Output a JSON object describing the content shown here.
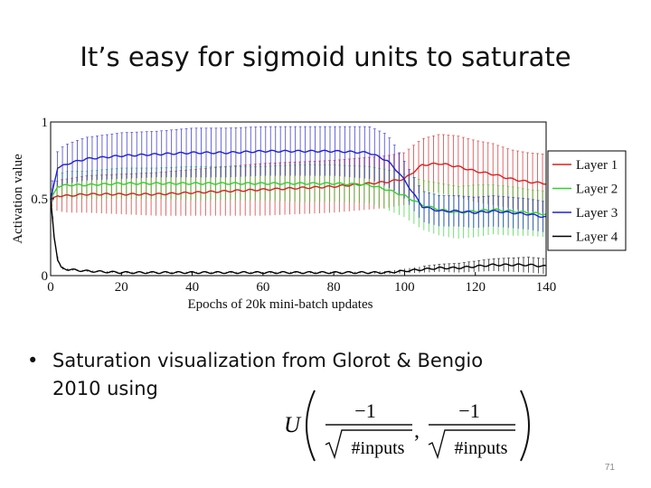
{
  "slide": {
    "title": "It’s easy for sigmoid units to saturate",
    "bullet": "Saturation visualization from Glorot & Bengio 2010 using",
    "page_number": "71"
  },
  "formula": {
    "function": "U",
    "numerator": "−1",
    "denominator": "#inputs"
  },
  "chart_data": {
    "type": "line",
    "xlabel": "Epochs of 20k mini-batch updates",
    "ylabel": "Activation value",
    "xlim": [
      0,
      140
    ],
    "ylim": [
      0,
      1
    ],
    "xticks": [
      0,
      20,
      40,
      60,
      80,
      100,
      120,
      140
    ],
    "yticks": [
      0,
      0.5,
      1
    ],
    "ytick_labels": [
      "0",
      "0.5",
      "1"
    ],
    "legend_position": "right",
    "grid": false,
    "error_bars": true,
    "series": [
      {
        "name": "Layer 1",
        "color": "#d62020",
        "x": [
          0,
          2,
          5,
          10,
          20,
          30,
          40,
          50,
          60,
          70,
          80,
          90,
          95,
          100,
          105,
          110,
          115,
          120,
          125,
          130,
          135,
          140
        ],
        "mean": [
          0.5,
          0.52,
          0.52,
          0.53,
          0.53,
          0.53,
          0.54,
          0.55,
          0.56,
          0.57,
          0.58,
          0.6,
          0.61,
          0.63,
          0.72,
          0.73,
          0.71,
          0.68,
          0.66,
          0.63,
          0.61,
          0.6
        ],
        "err": [
          0.04,
          0.1,
          0.11,
          0.12,
          0.13,
          0.14,
          0.15,
          0.16,
          0.17,
          0.17,
          0.17,
          0.17,
          0.17,
          0.17,
          0.17,
          0.19,
          0.2,
          0.2,
          0.2,
          0.19,
          0.19,
          0.19
        ]
      },
      {
        "name": "Layer 2",
        "color": "#30d030",
        "x": [
          0,
          2,
          5,
          10,
          20,
          30,
          40,
          50,
          60,
          70,
          80,
          90,
          95,
          100,
          105,
          110,
          115,
          120,
          125,
          130,
          135,
          140
        ],
        "mean": [
          0.5,
          0.58,
          0.59,
          0.59,
          0.6,
          0.6,
          0.6,
          0.6,
          0.6,
          0.6,
          0.6,
          0.59,
          0.56,
          0.52,
          0.46,
          0.43,
          0.41,
          0.42,
          0.43,
          0.42,
          0.41,
          0.4
        ],
        "err": [
          0.04,
          0.08,
          0.09,
          0.09,
          0.1,
          0.1,
          0.11,
          0.11,
          0.11,
          0.12,
          0.12,
          0.12,
          0.13,
          0.14,
          0.16,
          0.17,
          0.17,
          0.17,
          0.16,
          0.16,
          0.15,
          0.15
        ]
      },
      {
        "name": "Layer 3",
        "color": "#2020d0",
        "x": [
          0,
          2,
          5,
          10,
          20,
          30,
          40,
          50,
          60,
          70,
          80,
          90,
          95,
          98,
          100,
          105,
          110,
          115,
          120,
          125,
          130,
          135,
          140
        ],
        "mean": [
          0.5,
          0.7,
          0.73,
          0.76,
          0.78,
          0.79,
          0.8,
          0.8,
          0.81,
          0.81,
          0.81,
          0.8,
          0.75,
          0.68,
          0.62,
          0.45,
          0.42,
          0.42,
          0.41,
          0.42,
          0.41,
          0.4,
          0.38
        ],
        "err": [
          0.05,
          0.12,
          0.13,
          0.14,
          0.15,
          0.15,
          0.16,
          0.16,
          0.16,
          0.16,
          0.16,
          0.17,
          0.17,
          0.14,
          0.12,
          0.1,
          0.1,
          0.1,
          0.1,
          0.1,
          0.1,
          0.1,
          0.1
        ]
      },
      {
        "name": "Layer 4",
        "color": "#000000",
        "x": [
          0,
          1,
          2,
          3,
          5,
          10,
          20,
          30,
          40,
          50,
          60,
          70,
          80,
          90,
          95,
          100,
          105,
          110,
          115,
          120,
          125,
          130,
          135,
          140
        ],
        "mean": [
          0.5,
          0.25,
          0.1,
          0.05,
          0.04,
          0.03,
          0.02,
          0.02,
          0.02,
          0.02,
          0.02,
          0.02,
          0.02,
          0.02,
          0.02,
          0.03,
          0.04,
          0.05,
          0.05,
          0.06,
          0.07,
          0.07,
          0.07,
          0.06
        ],
        "err": [
          0.01,
          0.01,
          0.01,
          0.01,
          0.005,
          0.005,
          0.005,
          0.005,
          0.005,
          0.005,
          0.005,
          0.005,
          0.005,
          0.005,
          0.01,
          0.015,
          0.02,
          0.025,
          0.03,
          0.035,
          0.04,
          0.045,
          0.05,
          0.05
        ]
      }
    ]
  }
}
